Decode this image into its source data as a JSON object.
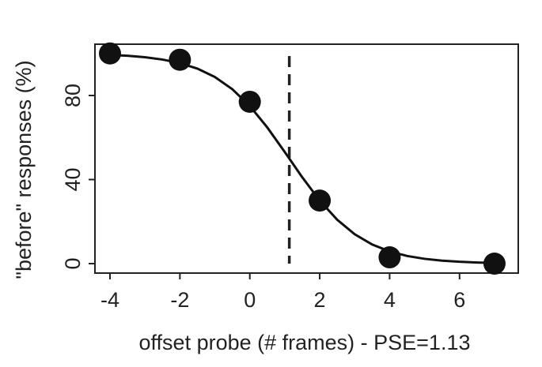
{
  "chart_data": {
    "type": "scatter",
    "x_label": "offset probe (# frames) - PSE=1.13",
    "y_label": "\"before\" responses (%)",
    "series": [
      {
        "name": "responses",
        "color": "#111111",
        "x": [
          -4,
          -2,
          0,
          2,
          4,
          7
        ],
        "values": [
          100,
          97,
          77,
          30,
          3,
          0
        ]
      },
      {
        "name": "fit",
        "color": "#111111",
        "x": [
          -4,
          -3.5,
          -3,
          -2.5,
          -2,
          -1.5,
          -1,
          -0.5,
          0,
          0.5,
          1,
          1.13,
          1.5,
          2,
          2.5,
          3,
          3.5,
          4,
          4.5,
          5,
          5.5,
          6,
          6.5,
          7
        ],
        "values": [
          99.3,
          98.9,
          98.2,
          97.1,
          95.4,
          92.8,
          88.8,
          83.0,
          75.0,
          64.8,
          53.1,
          50,
          41.1,
          30.0,
          20.9,
          14.0,
          9.1,
          5.8,
          3.65,
          2.28,
          1.42,
          0.88,
          0.54,
          0.33
        ]
      }
    ],
    "vline": 1.13,
    "xlim": [
      -4.43,
      7.68
    ],
    "xticks": [
      -4,
      -2,
      0,
      2,
      4,
      6
    ],
    "ylim": [
      -4.5,
      104.4
    ],
    "yticks": [
      0,
      40,
      80
    ]
  }
}
